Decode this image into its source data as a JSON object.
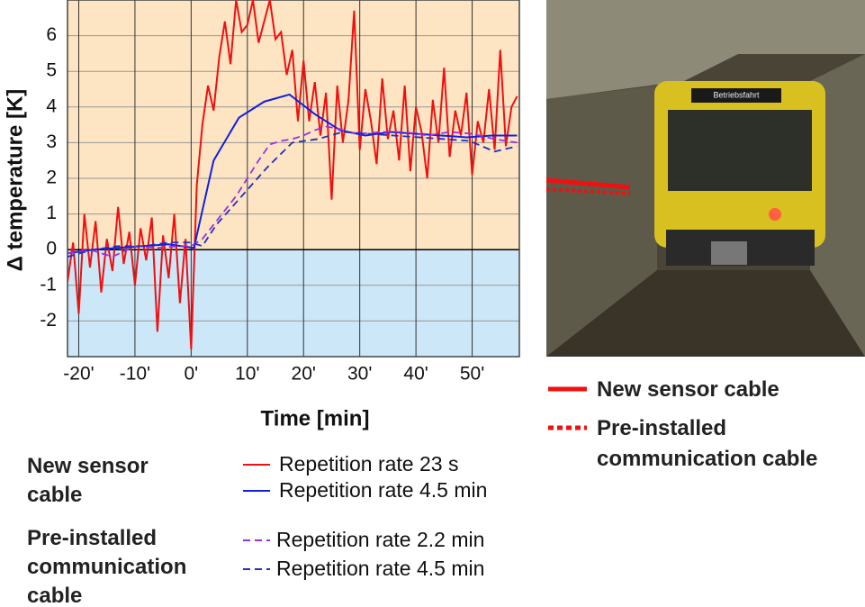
{
  "chart_data": {
    "type": "line",
    "y_label": "Δ temperature [K]",
    "x_label": "Time [min]",
    "xlim": [
      -22,
      58.4
    ],
    "ylim": [
      -3,
      7
    ],
    "xticks": [
      {
        "value": -20,
        "label": "-20'"
      },
      {
        "value": -10,
        "label": "-10'"
      },
      {
        "value": 0,
        "label": "0'"
      },
      {
        "value": 10,
        "label": "10'"
      },
      {
        "value": 20,
        "label": "20'"
      },
      {
        "value": 30,
        "label": "30'"
      },
      {
        "value": 40,
        "label": "40'"
      },
      {
        "value": 50,
        "label": "50'"
      }
    ],
    "yticks": [
      -2,
      -1,
      0,
      1,
      2,
      3,
      4,
      5,
      6
    ],
    "grid": true,
    "legend_groups": [
      "New sensor cable",
      "Pre-installed communication cable"
    ],
    "series": [
      {
        "name": "Repetition rate 23 s",
        "color": "#f01010",
        "dash": false,
        "x": [
          -22,
          -21,
          -20,
          -19,
          -18,
          -17,
          -16,
          -15,
          -14,
          -13,
          -12,
          -11,
          -10,
          -9,
          -8,
          -7,
          -6,
          -5,
          -4,
          -3,
          -2,
          -1,
          0,
          1,
          2,
          3,
          4,
          5,
          6,
          7,
          8,
          9,
          10,
          11,
          12,
          13,
          14,
          15,
          16,
          17,
          18,
          19,
          20,
          21,
          22,
          23,
          24,
          25,
          26,
          27,
          28,
          29,
          30,
          31,
          32,
          33,
          34,
          35,
          36,
          37,
          38,
          39,
          40,
          41,
          42,
          43,
          44,
          45,
          46,
          47,
          48,
          49,
          50,
          51,
          52,
          53,
          54,
          55,
          56,
          57,
          58
        ],
        "values": [
          -0.9,
          0.2,
          -1.8,
          1.0,
          -0.5,
          0.8,
          -1.2,
          0.3,
          -0.6,
          1.2,
          -0.4,
          0.5,
          -1.0,
          0.6,
          -0.3,
          0.9,
          -2.3,
          0.4,
          -0.8,
          1.0,
          -1.5,
          0.3,
          -2.8,
          1.8,
          3.5,
          4.6,
          3.9,
          5.4,
          6.4,
          5.2,
          7.0,
          6.1,
          6.3,
          7.0,
          5.8,
          6.4,
          7.0,
          5.9,
          6.1,
          4.9,
          5.6,
          3.6,
          5.3,
          3.6,
          4.7,
          3.2,
          4.4,
          1.4,
          4.6,
          3.0,
          4.2,
          6.7,
          2.8,
          4.5,
          3.6,
          2.4,
          4.8,
          3.1,
          3.9,
          2.5,
          4.6,
          2.2,
          4.0,
          3.3,
          2.0,
          4.2,
          3.0,
          5.1,
          2.6,
          3.9,
          3.2,
          4.4,
          2.1,
          3.6,
          3.0,
          4.5,
          2.8,
          5.6,
          2.9,
          4.0,
          4.3
        ]
      },
      {
        "name": "Repetition rate 4.5 min",
        "color": "#1020e0",
        "dash": false,
        "x": [
          -22,
          -17.5,
          -13,
          -8.5,
          -4,
          0.5,
          4,
          8.5,
          13,
          17.5,
          22,
          26.5,
          31,
          35.5,
          40,
          44.5,
          49,
          53.5,
          58
        ],
        "values": [
          -0.1,
          0,
          0.05,
          0.1,
          0.15,
          0.05,
          2.5,
          3.7,
          4.15,
          4.35,
          3.8,
          3.35,
          3.2,
          3.3,
          3.25,
          3.2,
          3.15,
          3.2,
          3.2
        ]
      },
      {
        "name": "Repetition rate 2.2 min",
        "color": "#9a30e0",
        "dash": true,
        "x": [
          -22,
          -18,
          -14,
          -10,
          -6,
          -2,
          0,
          2,
          4,
          6,
          8,
          10,
          12,
          14,
          16,
          18,
          20,
          22,
          24,
          26,
          28,
          30,
          34,
          38,
          42,
          46,
          50,
          54,
          58
        ],
        "values": [
          -0.1,
          0,
          -0.2,
          0.1,
          0.05,
          0.1,
          0.1,
          0.3,
          0.7,
          1.1,
          1.5,
          2.0,
          2.5,
          2.95,
          3.05,
          3.1,
          3.2,
          3.35,
          3.45,
          3.4,
          3.3,
          3.25,
          3.3,
          3.3,
          3.2,
          3.3,
          3.25,
          3.1,
          3.0
        ]
      },
      {
        "name": "Repetition rate 4.5 min",
        "color": "#2030c0",
        "dash": true,
        "x": [
          -22,
          -17.5,
          -13,
          -8.5,
          -4,
          0,
          2,
          4.5,
          9,
          13.5,
          18,
          22.5,
          27,
          31.5,
          36,
          40.5,
          45,
          49.5,
          54,
          58
        ],
        "values": [
          -0.2,
          0,
          0.1,
          0.1,
          0.2,
          0.2,
          0.1,
          0.7,
          1.5,
          2.3,
          3.0,
          3.1,
          3.3,
          3.25,
          3.2,
          3.15,
          3.1,
          3.05,
          2.75,
          2.9
        ]
      }
    ]
  },
  "photo": {
    "sign": "Betriebsfahrt",
    "legend": [
      {
        "label": "New sensor cable",
        "color": "#f01010",
        "dash": false
      },
      {
        "label": "Pre-installed communication cable",
        "color": "#f01010",
        "dash": true
      }
    ]
  }
}
